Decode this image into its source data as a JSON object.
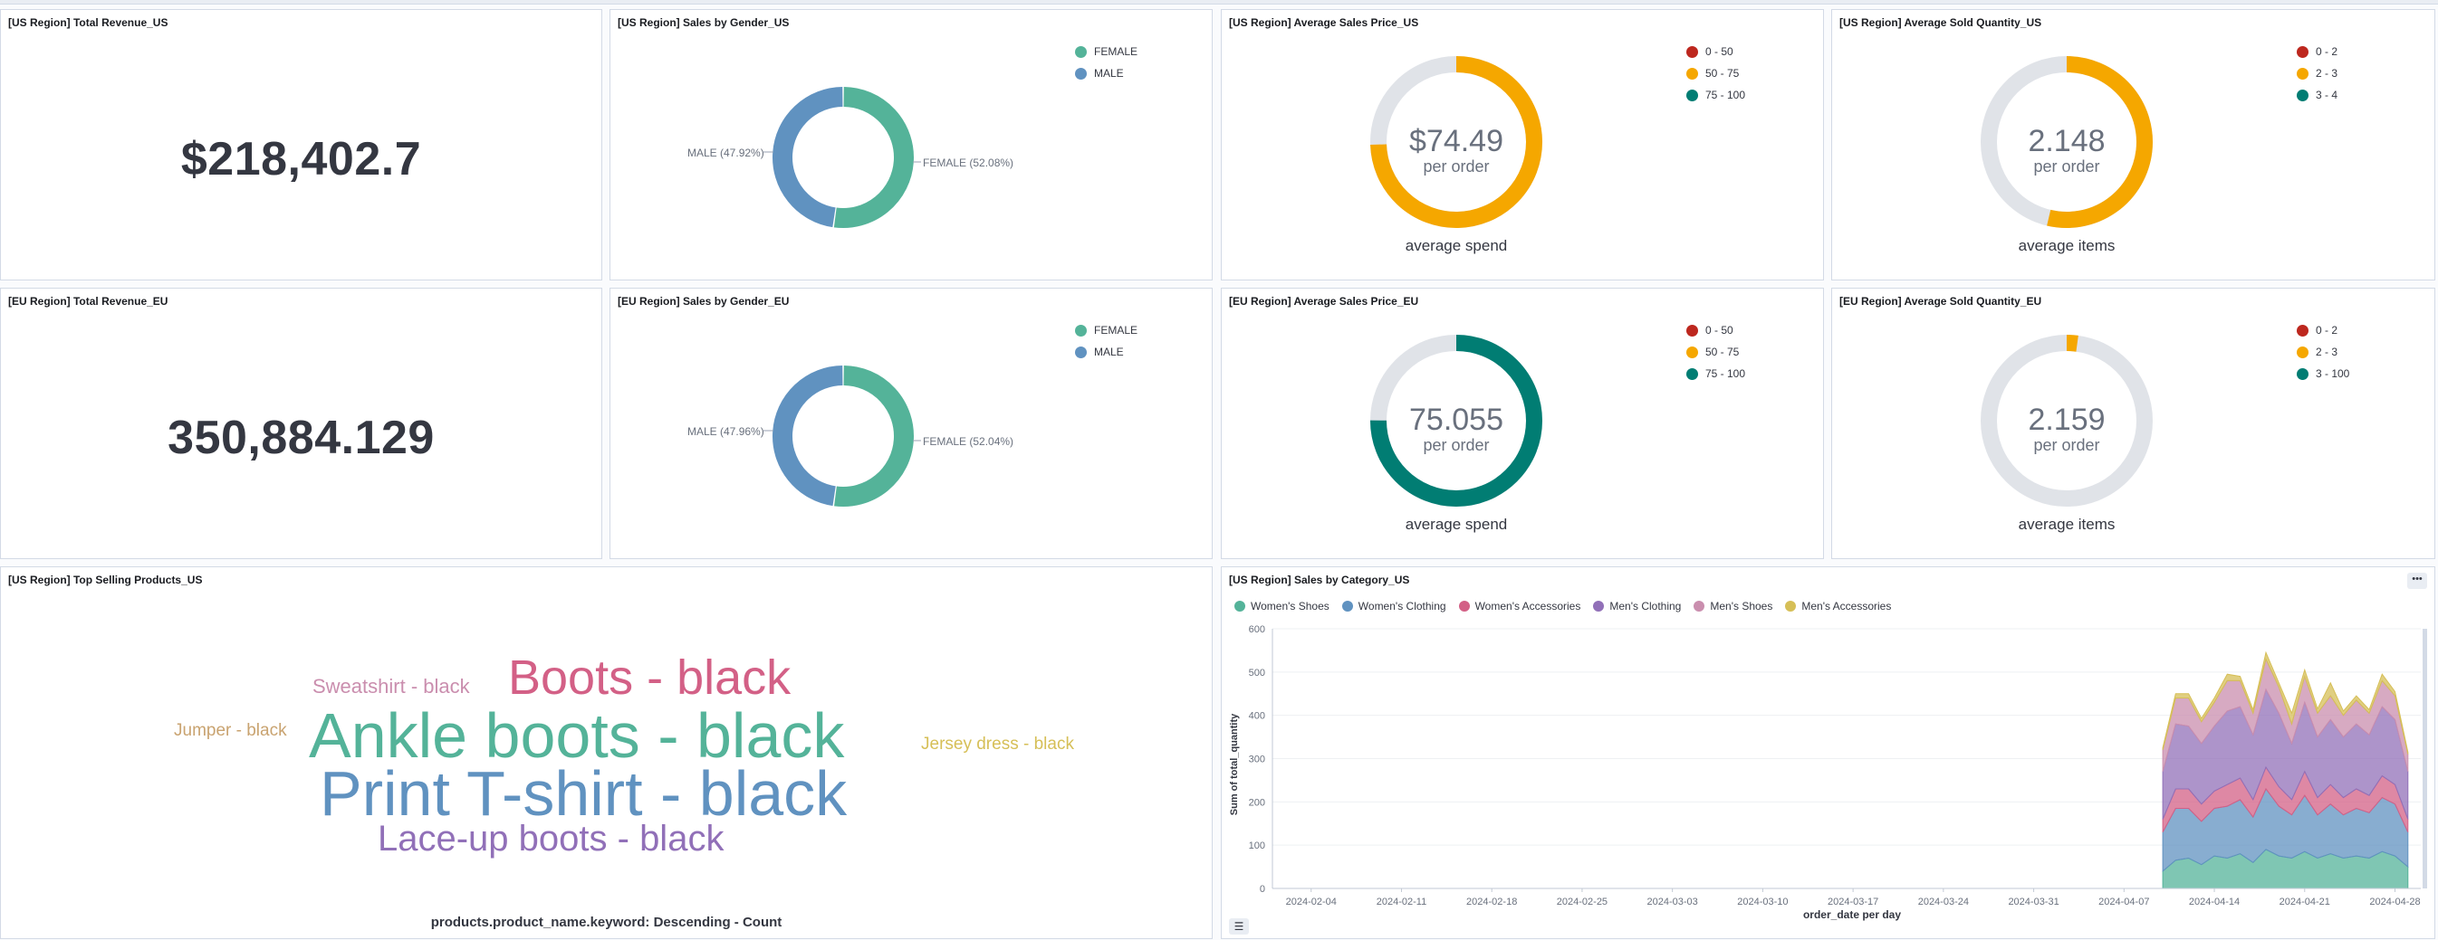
{
  "panels": {
    "us_revenue": {
      "title": "[US Region] Total Revenue_US",
      "value": "$218,402.7"
    },
    "eu_revenue": {
      "title": "[EU Region] Total Revenue_EU",
      "value": "350,884.129"
    },
    "us_gender": {
      "title": "[US Region] Sales by Gender_US",
      "legend": [
        "FEMALE",
        "MALE"
      ],
      "female_label": "FEMALE (52.08%)",
      "male_label": "MALE (47.92%)",
      "female_pct": 52.08,
      "male_pct": 47.92
    },
    "eu_gender": {
      "title": "[EU Region] Sales by Gender_EU",
      "legend": [
        "FEMALE",
        "MALE"
      ],
      "female_label": "FEMALE (52.04%)",
      "male_label": "MALE (47.96%)",
      "female_pct": 52.04,
      "male_pct": 47.96
    },
    "us_price": {
      "title": "[US Region] Average Sales Price_US",
      "value": "$74.49",
      "sub": "per order",
      "caption": "average spend",
      "legend": [
        "0 - 50",
        "50 - 75",
        "75 - 100"
      ],
      "fraction": 0.7449,
      "color": "#f5a700"
    },
    "eu_price": {
      "title": "[EU Region] Average Sales Price_EU",
      "value": "75.055",
      "sub": "per order",
      "caption": "average spend",
      "legend": [
        "0 - 50",
        "50 - 75",
        "75 - 100"
      ],
      "fraction": 0.75055,
      "color": "#017d73"
    },
    "us_qty": {
      "title": "[US Region] Average Sold Quantity_US",
      "value": "2.148",
      "sub": "per order",
      "caption": "average items",
      "legend": [
        "0 - 2",
        "2 - 3",
        "3 - 4"
      ],
      "fraction": 0.537,
      "color": "#f5a700"
    },
    "eu_qty": {
      "title": "[EU Region] Average Sold Quantity_EU",
      "value": "2.159",
      "sub": "per order",
      "caption": "average items",
      "legend": [
        "0 - 2",
        "2 - 3",
        "3 - 100"
      ],
      "fraction": 0.0216,
      "color": "#f5a700"
    },
    "top_products": {
      "title": "[US Region] Top Selling Products_US",
      "words": [
        "Boots - black",
        "Sweatshirt - black",
        "Ankle boots - black",
        "Jumper - black",
        "Jersey dress - black",
        "Print T-shirt - black",
        "Lace-up boots - black"
      ],
      "caption": "products.product_name.keyword: Descending - Count"
    },
    "sales_category": {
      "title": "[US Region] Sales by Category_US",
      "legend": [
        "Women's Shoes",
        "Women's Clothing",
        "Women's Accessories",
        "Men's Clothing",
        "Men's Shoes",
        "Men's Accessories"
      ],
      "ylabel": "Sum of total_quantity",
      "xlabel": "order_date per day"
    }
  },
  "colors": {
    "legend_range": [
      "#bd271e",
      "#f5a700",
      "#017d73"
    ],
    "female": "#54b399",
    "male": "#6092c0",
    "gauge_track": "#e0e3e8"
  },
  "chart_data": {
    "type": "area",
    "stacked": true,
    "title": "[US Region] Sales by Category_US",
    "xlabel": "order_date per day",
    "ylabel": "Sum of total_quantity",
    "ylim": [
      0,
      600
    ],
    "yticks": [
      0,
      100,
      200,
      300,
      400,
      500,
      600
    ],
    "xticks": [
      "2024-02-04",
      "2024-02-11",
      "2024-02-18",
      "2024-02-25",
      "2024-03-03",
      "2024-03-10",
      "2024-03-17",
      "2024-03-24",
      "2024-03-31",
      "2024-04-07",
      "2024-04-14",
      "2024-04-21",
      "2024-04-28"
    ],
    "x": [
      "2024-04-10",
      "2024-04-11",
      "2024-04-12",
      "2024-04-13",
      "2024-04-14",
      "2024-04-15",
      "2024-04-16",
      "2024-04-17",
      "2024-04-18",
      "2024-04-19",
      "2024-04-20",
      "2024-04-21",
      "2024-04-22",
      "2024-04-23",
      "2024-04-24",
      "2024-04-25",
      "2024-04-26",
      "2024-04-27",
      "2024-04-28",
      "2024-04-29"
    ],
    "series": [
      {
        "name": "Women's Shoes",
        "color": "#54b399",
        "values": [
          40,
          65,
          70,
          55,
          75,
          70,
          80,
          60,
          90,
          75,
          70,
          85,
          70,
          80,
          70,
          75,
          70,
          85,
          75,
          50
        ]
      },
      {
        "name": "Women's Clothing",
        "color": "#6092c0",
        "values": [
          90,
          120,
          115,
          100,
          110,
          120,
          125,
          105,
          140,
          115,
          100,
          130,
          100,
          115,
          100,
          110,
          105,
          125,
          120,
          80
        ]
      },
      {
        "name": "Women's Accessories",
        "color": "#d36086",
        "values": [
          30,
          45,
          45,
          40,
          40,
          50,
          50,
          40,
          50,
          45,
          35,
          55,
          40,
          45,
          40,
          45,
          40,
          50,
          45,
          30
        ]
      },
      {
        "name": "Men's Clothing",
        "color": "#9170b8",
        "values": [
          110,
          150,
          145,
          140,
          150,
          170,
          165,
          150,
          180,
          170,
          130,
          160,
          140,
          150,
          140,
          150,
          140,
          160,
          150,
          110
        ]
      },
      {
        "name": "Men's Shoes",
        "color": "#ca8eae",
        "values": [
          50,
          60,
          65,
          50,
          55,
          70,
          60,
          50,
          70,
          60,
          45,
          60,
          55,
          55,
          50,
          55,
          50,
          60,
          55,
          40
        ]
      },
      {
        "name": "Men's Accessories",
        "color": "#d6bf57",
        "values": [
          5,
          10,
          10,
          8,
          10,
          15,
          10,
          8,
          15,
          10,
          25,
          15,
          10,
          30,
          10,
          10,
          8,
          15,
          10,
          5
        ]
      }
    ]
  }
}
